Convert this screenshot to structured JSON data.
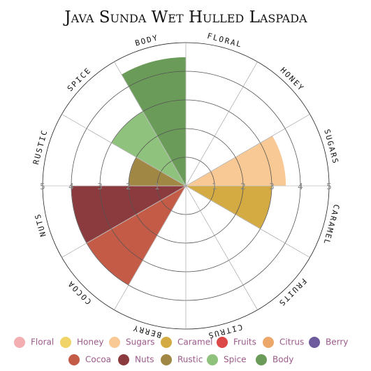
{
  "chart_data": {
    "type": "polar_area",
    "title": "Java Sunda Wet Hulled Laspada",
    "categories": [
      "Floral",
      "Honey",
      "Sugars",
      "Caramel",
      "Fruits",
      "Citrus",
      "Berry",
      "Cocoa",
      "Nuts",
      "Rustic",
      "Spice",
      "Body"
    ],
    "values": [
      0,
      0,
      3.5,
      3,
      0,
      0,
      0,
      4,
      4,
      2,
      3,
      4.5
    ],
    "colors": [
      "#f2aeb0",
      "#f0d467",
      "#f8c994",
      "#d4ab42",
      "#dc4848",
      "#eba86a",
      "#6e5b9e",
      "#c35b47",
      "#8b3b3d",
      "#a08844",
      "#8fc27c",
      "#6b9b59"
    ],
    "rlim": [
      0,
      5
    ],
    "rticks": [
      1,
      2,
      3,
      4,
      5
    ]
  }
}
